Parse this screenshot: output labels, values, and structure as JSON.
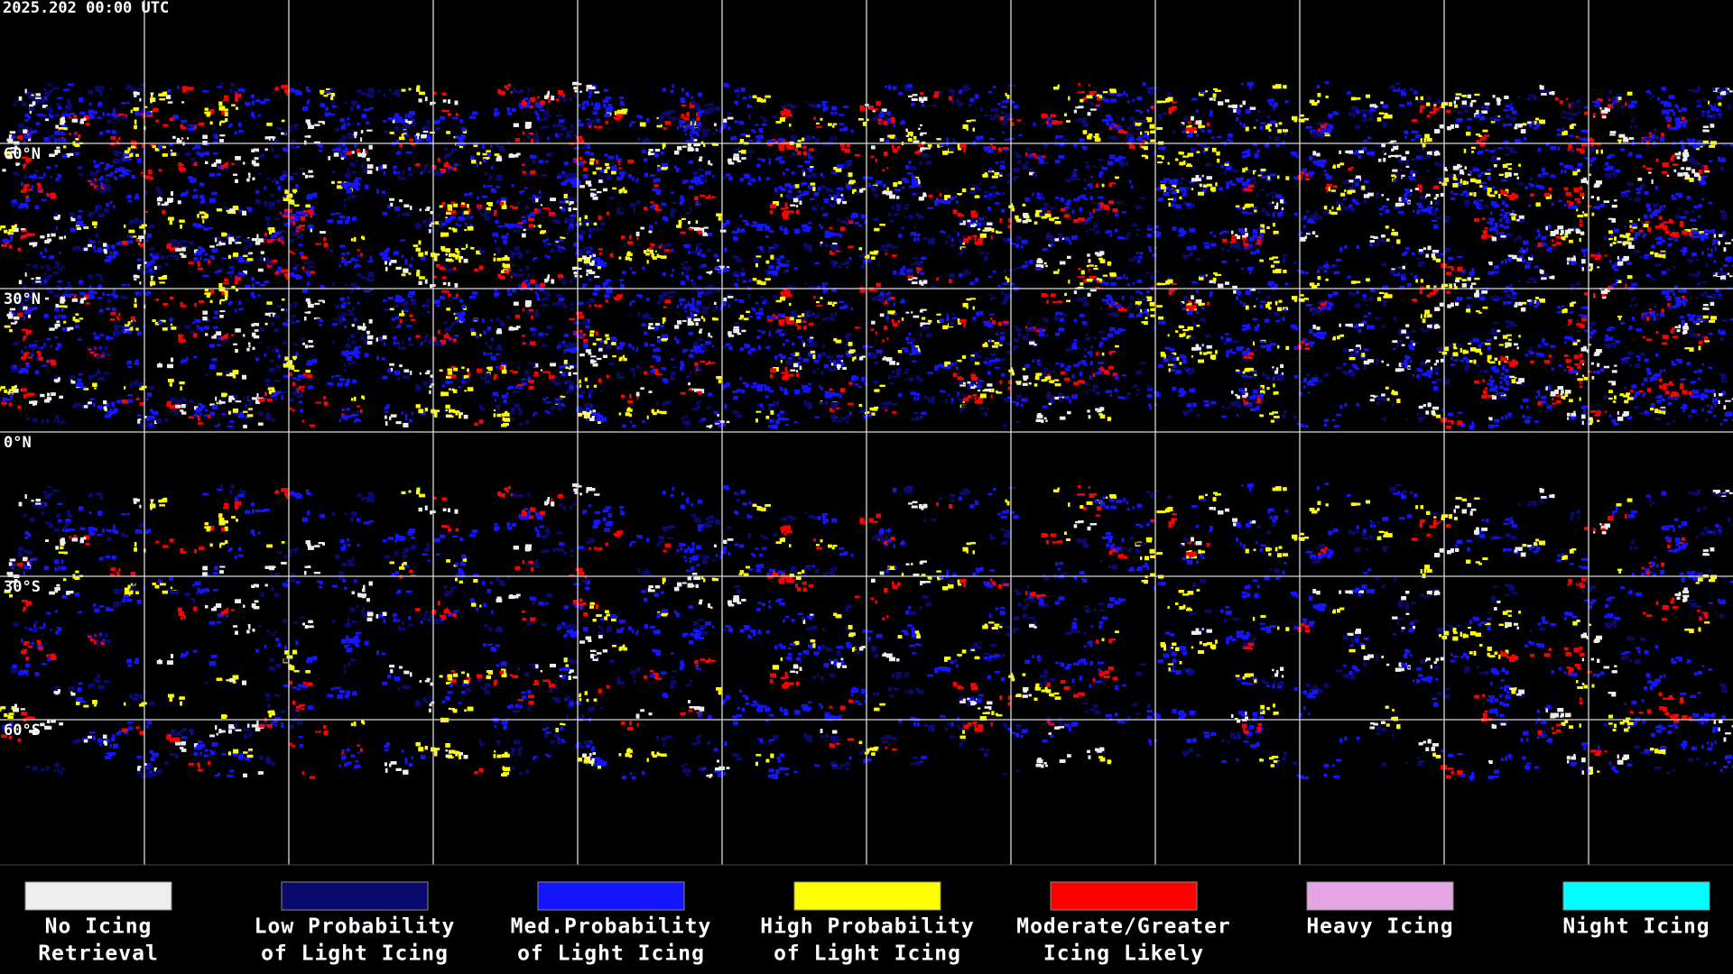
{
  "header": {
    "timestamp": "2025.202 00:00 UTC"
  },
  "map": {
    "latitude_labels": [
      "60°N",
      "30°N",
      "0°N",
      "30°S",
      "60°S"
    ]
  },
  "legend": {
    "items": [
      {
        "label_lines": [
          "No Icing",
          "Retrieval"
        ],
        "color": "#eeeeee"
      },
      {
        "label_lines": [
          "Low Probability",
          "of Light Icing"
        ],
        "color": "#0a0a6e"
      },
      {
        "label_lines": [
          "Med.Probability",
          "of Light Icing"
        ],
        "color": "#1414ff"
      },
      {
        "label_lines": [
          "High Probability",
          "of Light Icing"
        ],
        "color": "#ffff00"
      },
      {
        "label_lines": [
          "Moderate/Greater",
          "Icing Likely"
        ],
        "color": "#ff0000"
      },
      {
        "label_lines": [
          "Heavy Icing"
        ],
        "color": "#e6a6e6"
      },
      {
        "label_lines": [
          "Night Icing"
        ],
        "color": "#00ffff"
      }
    ]
  }
}
